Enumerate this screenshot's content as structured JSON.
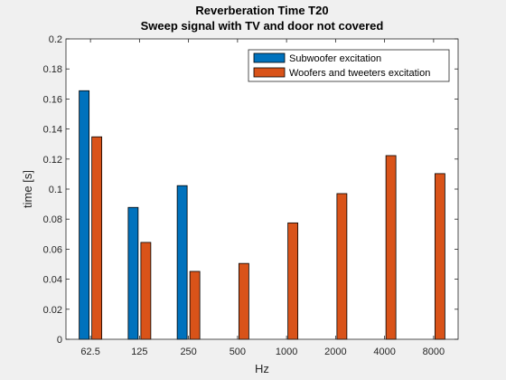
{
  "chart_data": {
    "type": "bar",
    "title": "Reverberation Time T20",
    "subtitle": "Sweep signal with TV and door not covered",
    "xlabel": "Hz",
    "ylabel": "time [s]",
    "categories": [
      "62.5",
      "125",
      "250",
      "500",
      "1000",
      "2000",
      "4000",
      "8000"
    ],
    "ylim": [
      0,
      0.2
    ],
    "yticks": [
      0,
      0.02,
      0.04,
      0.06,
      0.08,
      0.1,
      0.12,
      0.14,
      0.16,
      0.18,
      0.2
    ],
    "ytick_labels": [
      "0",
      "0.02",
      "0.04",
      "0.06",
      "0.08",
      "0.1",
      "0.12",
      "0.14",
      "0.16",
      "0.18",
      "0.2"
    ],
    "grid": false,
    "legend_position": "top-right",
    "series": [
      {
        "name": "Subwoofer excitation",
        "color": "#0072bd",
        "values": [
          0.1655,
          0.0878,
          0.1023,
          null,
          null,
          null,
          null,
          null
        ]
      },
      {
        "name": "Woofers and tweeters excitation",
        "color": "#d95319",
        "values": [
          0.1348,
          0.0645,
          0.0452,
          0.0505,
          0.0775,
          0.097,
          0.1223,
          0.1103
        ]
      }
    ]
  }
}
